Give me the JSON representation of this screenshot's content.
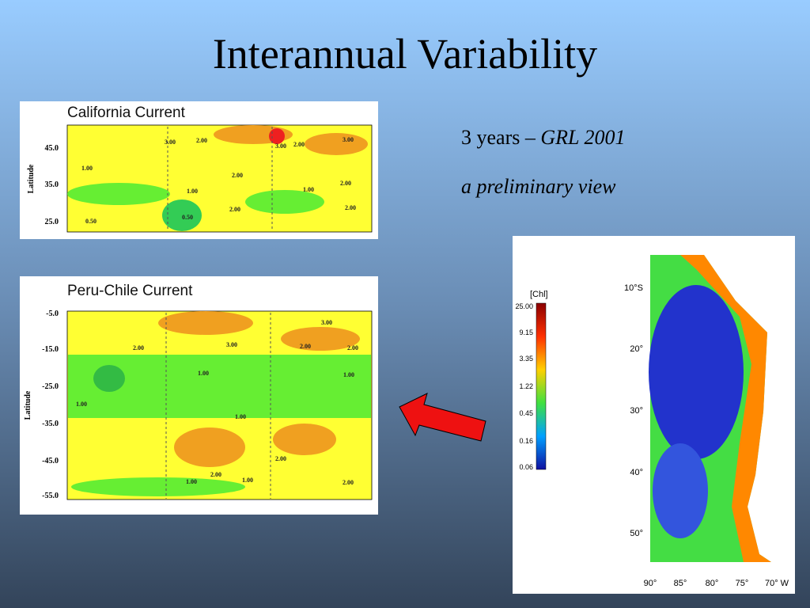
{
  "title": "Interannual Variability",
  "text": {
    "line1_plain": "3 years – ",
    "line1_italic": "GRL 2001",
    "line2": "a preliminary view"
  },
  "panels": [
    {
      "title": "California Current",
      "y_axis_label": "Latitude",
      "y_ticks": [
        "45.0",
        "35.0",
        "25.0"
      ],
      "contour_labels": [
        "3.00",
        "2.00",
        "3.00",
        "2.00",
        "3.00",
        "1.00",
        "2.00",
        "1.00",
        "1.00",
        "2.00",
        "2.00",
        "2.00",
        "0.50",
        "0.50"
      ]
    },
    {
      "title": "Peru-Chile Current",
      "y_axis_label": "Latitude",
      "y_ticks": [
        "-5.0",
        "-15.0",
        "-25.0",
        "-35.0",
        "-45.0",
        "-55.0"
      ],
      "contour_labels": [
        "2.00",
        "3.00",
        "3.00",
        "2.00",
        "2.00",
        "1.00",
        "1.00",
        "1.00",
        "1.00",
        "2.00",
        "2.00",
        "1.00",
        "1.00",
        "2.00"
      ]
    }
  ],
  "map": {
    "colorbar_title": "[Chl]",
    "colorbar_ticks": [
      "25.00",
      "9.15",
      "3.35",
      "1.22",
      "0.45",
      "0.16",
      "0.06"
    ],
    "lat_labels": [
      "10°S",
      "20°",
      "30°",
      "40°",
      "50°"
    ],
    "lon_labels": [
      "90°",
      "85°",
      "80°",
      "75°",
      "70° W"
    ]
  }
}
